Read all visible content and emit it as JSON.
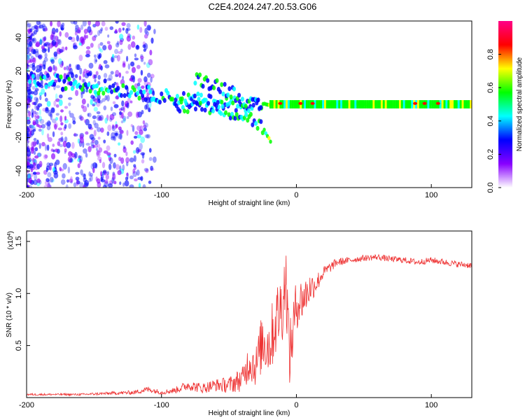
{
  "title": "C2E4.2024.247.20.53.G06",
  "chart_data": [
    {
      "type": "heatmap",
      "xlabel": "Height of straight line (km)",
      "ylabel": "Frequency (Hz)",
      "xlim": [
        -200,
        130
      ],
      "ylim": [
        -50,
        50
      ],
      "xticks": [
        -200,
        -100,
        0,
        100
      ],
      "yticks": [
        -40,
        -20,
        0,
        20,
        40
      ],
      "colorbar": {
        "label": "Normalized spectral amplitude",
        "range": [
          0,
          1
        ],
        "ticks": [
          "0.0",
          "0.2",
          "0.4",
          "0.6",
          "0.8"
        ],
        "colors": [
          "#ffffff",
          "#8800ff",
          "#0000ff",
          "#00ffff",
          "#00ff00",
          "#ffff00",
          "#ff0000",
          "#ff0088"
        ]
      },
      "ridges": [
        {
          "x": [
            -200,
            -160,
            -120,
            -100,
            -80,
            -60,
            -40,
            -20,
            0,
            20,
            60,
            100,
            130
          ],
          "freq": [
            15,
            12,
            8,
            5,
            3,
            1,
            0,
            0,
            0,
            0,
            0,
            0,
            0
          ]
        },
        {
          "x": [
            -75,
            -60,
            -45,
            -35,
            -25
          ],
          "freq": [
            16,
            12,
            6,
            0,
            -2
          ]
        },
        {
          "x": [
            -90,
            -70,
            -50,
            -35,
            -25,
            -18
          ],
          "freq": [
            -2,
            0,
            -4,
            -8,
            -14,
            -24
          ]
        }
      ],
      "grid": false
    },
    {
      "type": "line",
      "xlabel": "Height of straight line (km)",
      "ylabel": "SNR (10 * v/v)",
      "multiplier": "(x10",
      "multiplier_exp": "4",
      "xlim": [
        -200,
        130
      ],
      "ylim": [
        0,
        1.6
      ],
      "xticks": [
        -200,
        -100,
        0,
        100
      ],
      "yticks": [
        "0.5",
        "1.0",
        "1.5"
      ],
      "series": [
        {
          "color": "#ee3333",
          "x": [
            -200,
            -180,
            -160,
            -140,
            -120,
            -110,
            -100,
            -90,
            -80,
            -70,
            -60,
            -50,
            -40,
            -35,
            -30,
            -25,
            -20,
            -15,
            -10,
            -8,
            -5,
            -2,
            0,
            5,
            10,
            15,
            20,
            25,
            30,
            40,
            50,
            60,
            70,
            80,
            90,
            100,
            110,
            120,
            130
          ],
          "y": [
            0.03,
            0.03,
            0.03,
            0.04,
            0.05,
            0.08,
            0.05,
            0.07,
            0.12,
            0.09,
            0.12,
            0.12,
            0.18,
            0.35,
            0.3,
            0.55,
            0.5,
            0.75,
            0.9,
            1.2,
            0.4,
            0.7,
            0.9,
            0.95,
            1.05,
            1.1,
            1.2,
            1.25,
            1.3,
            1.32,
            1.34,
            1.35,
            1.33,
            1.32,
            1.3,
            1.32,
            1.3,
            1.28,
            1.27
          ],
          "noise": [
            0.01,
            0.01,
            0.01,
            0.015,
            0.02,
            0.03,
            0.02,
            0.03,
            0.05,
            0.05,
            0.06,
            0.08,
            0.12,
            0.2,
            0.2,
            0.3,
            0.3,
            0.35,
            0.35,
            0.35,
            0.3,
            0.3,
            0.25,
            0.2,
            0.15,
            0.1,
            0.06,
            0.05,
            0.04,
            0.03,
            0.03,
            0.03,
            0.03,
            0.03,
            0.03,
            0.03,
            0.03,
            0.03,
            0.03
          ]
        }
      ],
      "grid": false
    }
  ]
}
